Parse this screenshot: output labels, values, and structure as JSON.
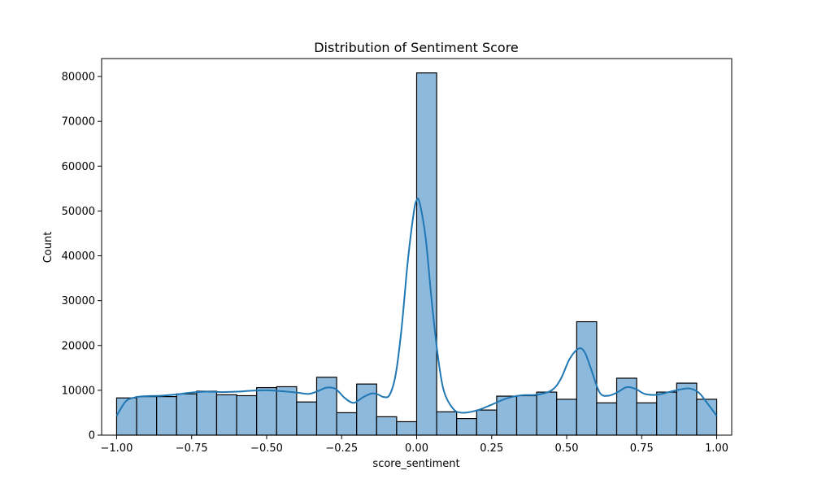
{
  "chart_data": {
    "type": "bar",
    "title": "Distribution of Sentiment Score",
    "xlabel": "score_sentiment",
    "ylabel": "Count",
    "xlim": [
      -1.05,
      1.05
    ],
    "ylim": [
      0,
      84000
    ],
    "x_ticks": [
      -1.0,
      -0.75,
      -0.5,
      -0.25,
      0.0,
      0.25,
      0.5,
      0.75,
      1.0
    ],
    "x_tick_labels": [
      "−1.00",
      "−0.75",
      "−0.50",
      "−0.25",
      "0.00",
      "0.25",
      "0.50",
      "0.75",
      "1.00"
    ],
    "y_ticks": [
      0,
      10000,
      20000,
      30000,
      40000,
      50000,
      60000,
      70000,
      80000
    ],
    "y_tick_labels": [
      "0",
      "10000",
      "20000",
      "30000",
      "40000",
      "50000",
      "60000",
      "70000",
      "80000"
    ],
    "bins": {
      "start": -1.0,
      "end": 1.0,
      "counts": [
        8300,
        8600,
        8600,
        9200,
        9800,
        9000,
        8800,
        10600,
        10800,
        7400,
        12900,
        5000,
        11400,
        4100,
        3000,
        80800,
        5200,
        3700,
        5600,
        8700,
        8800,
        9600,
        8000,
        25300,
        7200,
        12700,
        7200,
        9600,
        11600,
        8000
      ]
    },
    "kde": {
      "x": [
        -1.0,
        -0.97,
        -0.94,
        -0.9,
        -0.85,
        -0.8,
        -0.75,
        -0.7,
        -0.65,
        -0.6,
        -0.55,
        -0.5,
        -0.45,
        -0.4,
        -0.36,
        -0.33,
        -0.3,
        -0.27,
        -0.24,
        -0.21,
        -0.18,
        -0.15,
        -0.13,
        -0.11,
        -0.09,
        -0.07,
        -0.05,
        -0.03,
        -0.01,
        0.0,
        0.01,
        0.03,
        0.05,
        0.07,
        0.09,
        0.12,
        0.15,
        0.2,
        0.25,
        0.3,
        0.35,
        0.4,
        0.45,
        0.48,
        0.51,
        0.54,
        0.56,
        0.58,
        0.61,
        0.64,
        0.67,
        0.7,
        0.73,
        0.76,
        0.8,
        0.84,
        0.88,
        0.91,
        0.94,
        0.97,
        1.0
      ],
      "y": [
        4300,
        7500,
        8400,
        8700,
        8800,
        9100,
        9500,
        9700,
        9600,
        9700,
        9900,
        10000,
        9800,
        9500,
        9200,
        9800,
        10600,
        10300,
        8300,
        7200,
        8400,
        9300,
        9100,
        8500,
        9000,
        13500,
        24000,
        38500,
        49500,
        52400,
        51800,
        44000,
        30000,
        18000,
        10000,
        6000,
        5000,
        5500,
        6800,
        8200,
        8900,
        9000,
        10000,
        12500,
        17000,
        19300,
        18500,
        15000,
        9500,
        8800,
        9600,
        10700,
        10300,
        9200,
        9000,
        9600,
        10200,
        10400,
        9500,
        7000,
        4300
      ]
    },
    "colors": {
      "bar_fill": "#8db9dc",
      "bar_edge": "#000000",
      "kde_line": "#1f77b4"
    },
    "grid": false,
    "legend": "none"
  }
}
